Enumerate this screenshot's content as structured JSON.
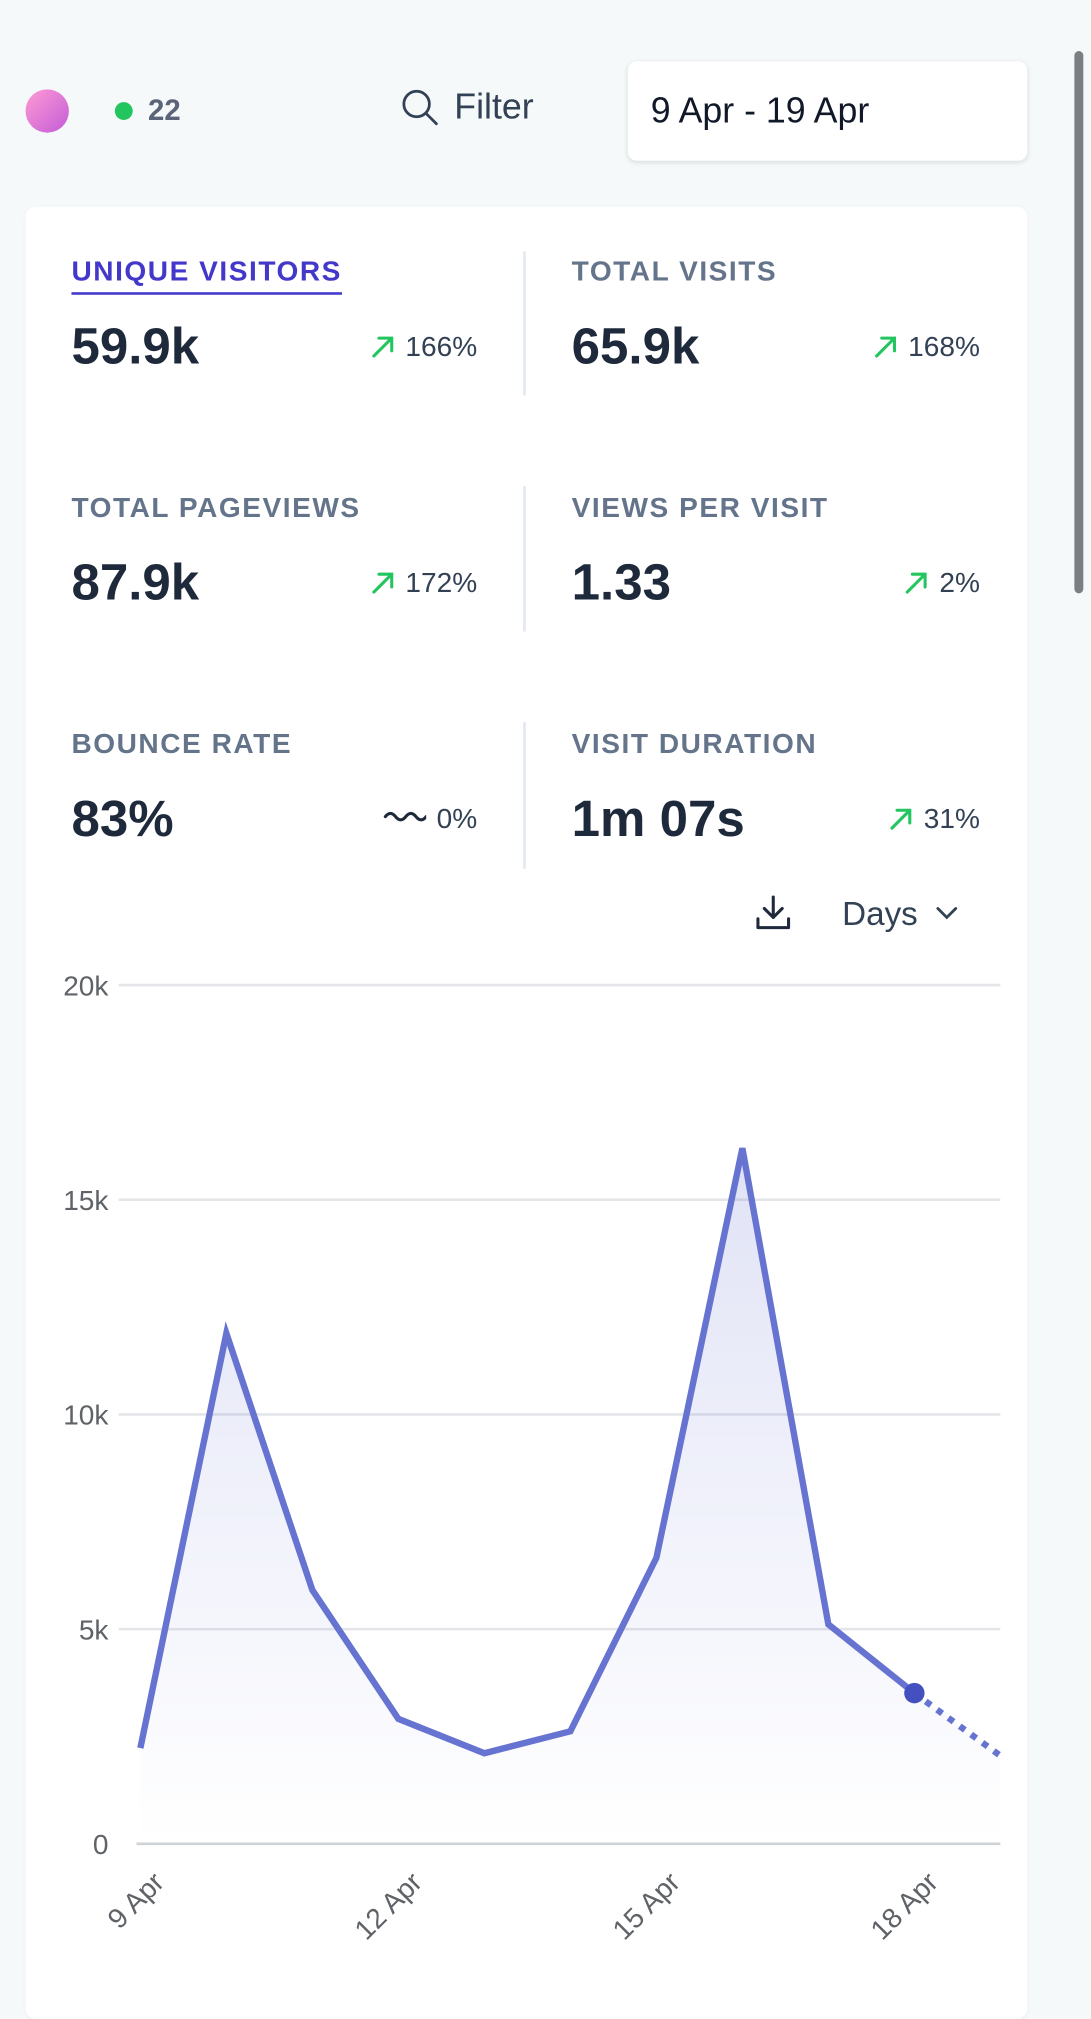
{
  "header": {
    "live_count": "22",
    "filter_label": "Filter",
    "date_range": "9 Apr - 19 Apr"
  },
  "stats": [
    {
      "label": "UNIQUE VISITORS",
      "value": "59.9k",
      "change": "166%",
      "trend": "up",
      "active": true
    },
    {
      "label": "TOTAL VISITS",
      "value": "65.9k",
      "change": "168%",
      "trend": "up"
    },
    {
      "label": "TOTAL PAGEVIEWS",
      "value": "87.9k",
      "change": "172%",
      "trend": "up"
    },
    {
      "label": "VIEWS PER VISIT",
      "value": "1.33",
      "change": "2%",
      "trend": "up"
    },
    {
      "label": "BOUNCE RATE",
      "value": "83%",
      "change": "0%",
      "trend": "flat"
    },
    {
      "label": "VISIT DURATION",
      "value": "1m 07s",
      "change": "31%",
      "trend": "up"
    }
  ],
  "chart_controls": {
    "interval": "Days"
  },
  "colors": {
    "accent": "#4338ca",
    "up": "#22c55e",
    "line": "#6673d1"
  },
  "chart_data": {
    "type": "line",
    "series": [
      {
        "name": "Unique visitors",
        "values": [
          2230,
          11890,
          5910,
          2910,
          2110,
          2620,
          6660,
          16200,
          5110,
          3510,
          2050
        ]
      }
    ],
    "x": [
      "9 Apr",
      "10 Apr",
      "11 Apr",
      "12 Apr",
      "13 Apr",
      "14 Apr",
      "15 Apr",
      "16 Apr",
      "17 Apr",
      "18 Apr",
      "19 Apr"
    ],
    "x_tick_labels": [
      "9 Apr",
      "12 Apr",
      "15 Apr",
      "18 Apr"
    ],
    "y_ticks": [
      0,
      5000,
      10000,
      15000,
      20000
    ],
    "y_tick_labels": [
      "0",
      "5k",
      "10k",
      "15k",
      "20k"
    ],
    "ylim": [
      0,
      20000
    ],
    "grid": true,
    "partial_from_index": 9
  }
}
